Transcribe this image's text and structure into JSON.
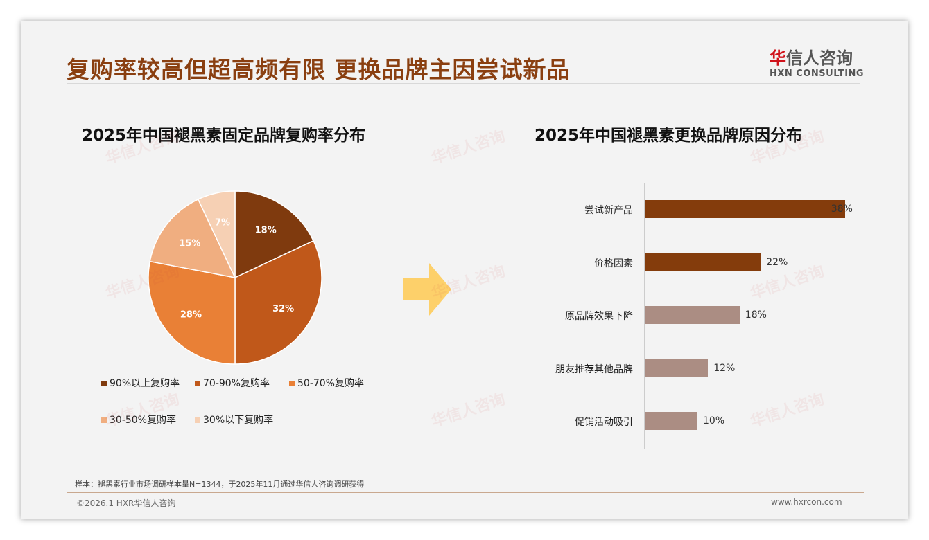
{
  "title": "复购率较高但超高频有限 更换品牌主因尝试新品",
  "logo": {
    "cn_mark": "华",
    "cn_rest": "信人咨询",
    "en": "HXN CONSULTING"
  },
  "chart_data": [
    {
      "type": "pie",
      "title": "2025年中国褪黑素固定品牌复购率分布",
      "categories": [
        "90%以上复购率",
        "70-90%复购率",
        "50-70%复购率",
        "30-50%复购率",
        "30%以下复购率"
      ],
      "values": [
        18,
        32,
        28,
        15,
        7
      ],
      "labels": [
        "18%",
        "32%",
        "28%",
        "15%",
        "7%"
      ],
      "colors": [
        "#7f3a0e",
        "#c0581a",
        "#e98036",
        "#f0ae80",
        "#f6d0b4"
      ],
      "legend": "bottom"
    },
    {
      "type": "bar",
      "title": "2025年中国褪黑素更换品牌原因分布",
      "categories": [
        "尝试新产品",
        "价格因素",
        "原品牌效果下降",
        "朋友推荐其他品牌",
        "促销活动吸引"
      ],
      "values": [
        38,
        22,
        18,
        12,
        10
      ],
      "labels": [
        "38%",
        "22%",
        "18%",
        "12%",
        "10%"
      ],
      "colors": [
        "#843c0c",
        "#843c0c",
        "#ab8d83",
        "#ab8d83",
        "#ab8d83"
      ],
      "orientation": "horizontal"
    }
  ],
  "footer": {
    "note": "样本：褪黑素行业市场调研样本量N=1344，于2025年11月通过华信人咨询调研获得",
    "copyright": "©2026.1 HXR华信人咨询",
    "url": "www.hxrcon.com"
  }
}
